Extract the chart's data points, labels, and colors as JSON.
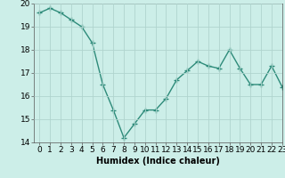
{
  "x": [
    0,
    1,
    2,
    3,
    4,
    5,
    6,
    7,
    8,
    9,
    10,
    11,
    12,
    13,
    14,
    15,
    16,
    17,
    18,
    19,
    20,
    21,
    22,
    23
  ],
  "y": [
    19.6,
    19.8,
    19.6,
    19.3,
    19.0,
    18.3,
    16.5,
    15.4,
    14.2,
    14.8,
    15.4,
    15.4,
    15.9,
    16.7,
    17.1,
    17.5,
    17.3,
    17.2,
    18.0,
    17.2,
    16.5,
    16.5,
    17.3,
    16.4
  ],
  "line_color": "#2e8b7a",
  "marker": "+",
  "marker_size": 4,
  "bg_color": "#cceee8",
  "grid_color": "#b0d4ce",
  "xlabel": "Humidex (Indice chaleur)",
  "ylim": [
    14,
    20
  ],
  "xlim": [
    -0.5,
    23
  ],
  "yticks": [
    14,
    15,
    16,
    17,
    18,
    19,
    20
  ],
  "xticks": [
    0,
    1,
    2,
    3,
    4,
    5,
    6,
    7,
    8,
    9,
    10,
    11,
    12,
    13,
    14,
    15,
    16,
    17,
    18,
    19,
    20,
    21,
    22,
    23
  ],
  "xlabel_fontsize": 7,
  "tick_fontsize": 6.5,
  "linewidth": 1.0
}
